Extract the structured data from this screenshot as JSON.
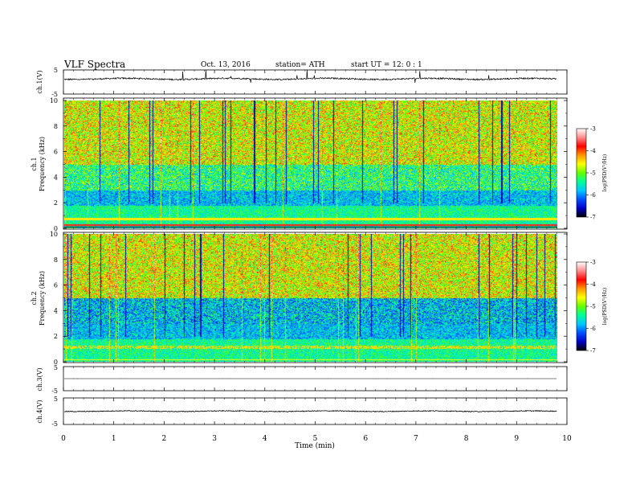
{
  "header": {
    "title": "VLF  Spectra",
    "date": "Oct. 13, 2016",
    "station": "station= ATH",
    "start": "start  UT  =    12: 0  : 1"
  },
  "chart_data": [
    {
      "type": "line",
      "ylabel": "ch.1(V)",
      "ylim": [
        -5,
        5
      ],
      "yticks": [
        "5",
        "-5"
      ],
      "description_values": {
        "baseline_v": 1.3,
        "amplitude_v": 0.6
      }
    },
    {
      "type": "heatmap",
      "ylabel_top": "ch.1",
      "ylabel": "Frequency  (kHz)",
      "ylim": [
        0,
        10
      ],
      "yticks": [
        "0",
        "2",
        "4",
        "6",
        "8",
        "10"
      ],
      "colorbar": {
        "label": "log(PSD(V²/Hz)",
        "ticks": [
          "-3",
          "-4",
          "-5",
          "-6",
          "-7"
        ],
        "range": [
          -7,
          -3
        ]
      }
    },
    {
      "type": "heatmap",
      "ylabel_top": "ch.2",
      "ylabel": "Frequency  (kHz)",
      "ylim": [
        0,
        10
      ],
      "yticks": [
        "0",
        "2",
        "4",
        "6",
        "8",
        "10"
      ],
      "colorbar": {
        "label": "log(PSD(V²/Hz)",
        "ticks": [
          "-3",
          "-4",
          "-5",
          "-6",
          "-7"
        ],
        "range": [
          -7,
          -3
        ]
      }
    },
    {
      "type": "line",
      "ylabel": "ch.3(V)",
      "ylim": [
        -5,
        5
      ],
      "yticks": [
        "5",
        "-5"
      ],
      "description_values": {
        "baseline_v": 0.0,
        "amplitude_v": 0.02
      }
    },
    {
      "type": "line",
      "ylabel": "ch.4(V)",
      "ylim": [
        -5,
        5
      ],
      "yticks": [
        "5",
        "-5"
      ],
      "description_values": {
        "baseline_v": 0.0,
        "amplitude_v": 0.3
      }
    }
  ],
  "xaxis": {
    "label": "Time  (min)",
    "range": [
      0,
      10
    ],
    "ticks": [
      "0",
      "1",
      "2",
      "3",
      "4",
      "5",
      "6",
      "7",
      "8",
      "9",
      "10"
    ],
    "data_end": 9.8
  },
  "colors": {
    "axis": "#000000",
    "colormap": [
      "#000000",
      "#0000c8",
      "#0050ff",
      "#00c8ff",
      "#00ff96",
      "#64ff00",
      "#ffff00",
      "#ff9600",
      "#ff0000",
      "#ff8c8c",
      "#ffffff"
    ]
  }
}
